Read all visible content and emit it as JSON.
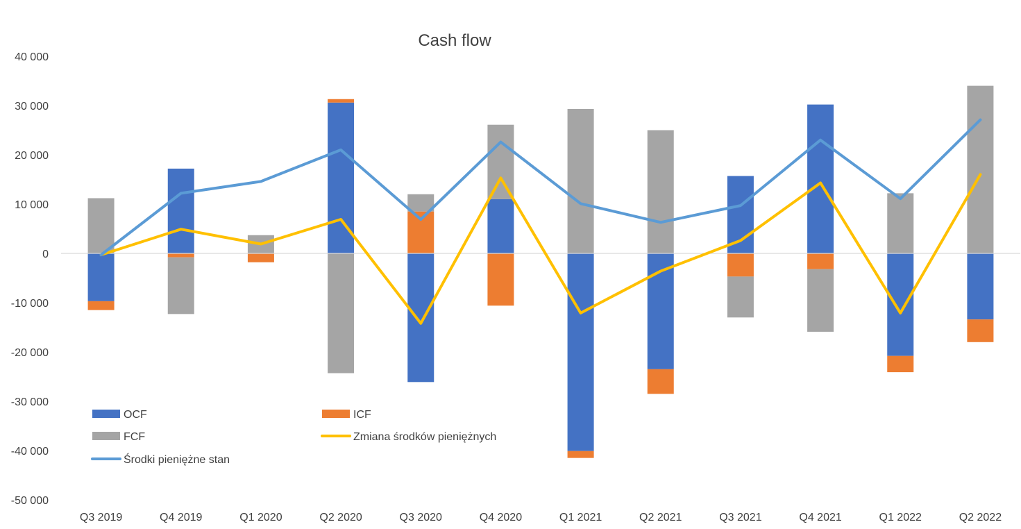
{
  "chart_data": {
    "type": "bar",
    "title": "Cash flow",
    "xlabel": "",
    "ylabel": "",
    "ylim": [
      -50000,
      40000
    ],
    "yticks": [
      40000,
      30000,
      20000,
      10000,
      0,
      -10000,
      -20000,
      -30000,
      -40000,
      -50000
    ],
    "ytick_labels": [
      "40 000",
      "30 000",
      "20 000",
      "10 000",
      "0",
      "-10 000",
      "-20 000",
      "-30 000",
      "-40 000",
      "-50 000"
    ],
    "grid": false,
    "legend_position": "bottom-left",
    "categories": [
      "Q3 2019",
      "Q4 2019",
      "Q1 2020",
      "Q2 2020",
      "Q3 2020",
      "Q4 2020",
      "Q1 2021",
      "Q2 2021",
      "Q3 2021",
      "Q4 2021",
      "Q1 2022",
      "Q2 2022"
    ],
    "series": [
      {
        "name": "OCF",
        "kind": "stacked-bar",
        "color": "#4472C4",
        "values": [
          -9700,
          17200,
          0,
          30600,
          -26100,
          11000,
          -40100,
          -23500,
          15700,
          30200,
          -20800,
          -13400
        ]
      },
      {
        "name": "ICF",
        "kind": "stacked-bar",
        "color": "#ED7D31",
        "values": [
          -1800,
          -800,
          -1800,
          700,
          8500,
          -10600,
          -1400,
          -5000,
          -4700,
          -3200,
          -3300,
          -4600
        ]
      },
      {
        "name": "FCF",
        "kind": "stacked-bar",
        "color": "#A5A5A5",
        "values": [
          11200,
          -11500,
          3700,
          -24300,
          3500,
          15100,
          29300,
          25000,
          -8300,
          -12700,
          12200,
          34000
        ]
      },
      {
        "name": "Zmiana środków pieniężnych",
        "kind": "line",
        "color": "#FFC000",
        "values": [
          -300,
          4900,
          1900,
          6900,
          -14200,
          15300,
          -12100,
          -3600,
          2600,
          14300,
          -12100,
          16000
        ]
      },
      {
        "name": "Środki pieniężne stan",
        "kind": "line",
        "color": "#5B9BD5",
        "values": [
          -300,
          12200,
          14600,
          21000,
          6900,
          22600,
          10100,
          6300,
          9700,
          23000,
          11100,
          27100
        ]
      }
    ]
  }
}
